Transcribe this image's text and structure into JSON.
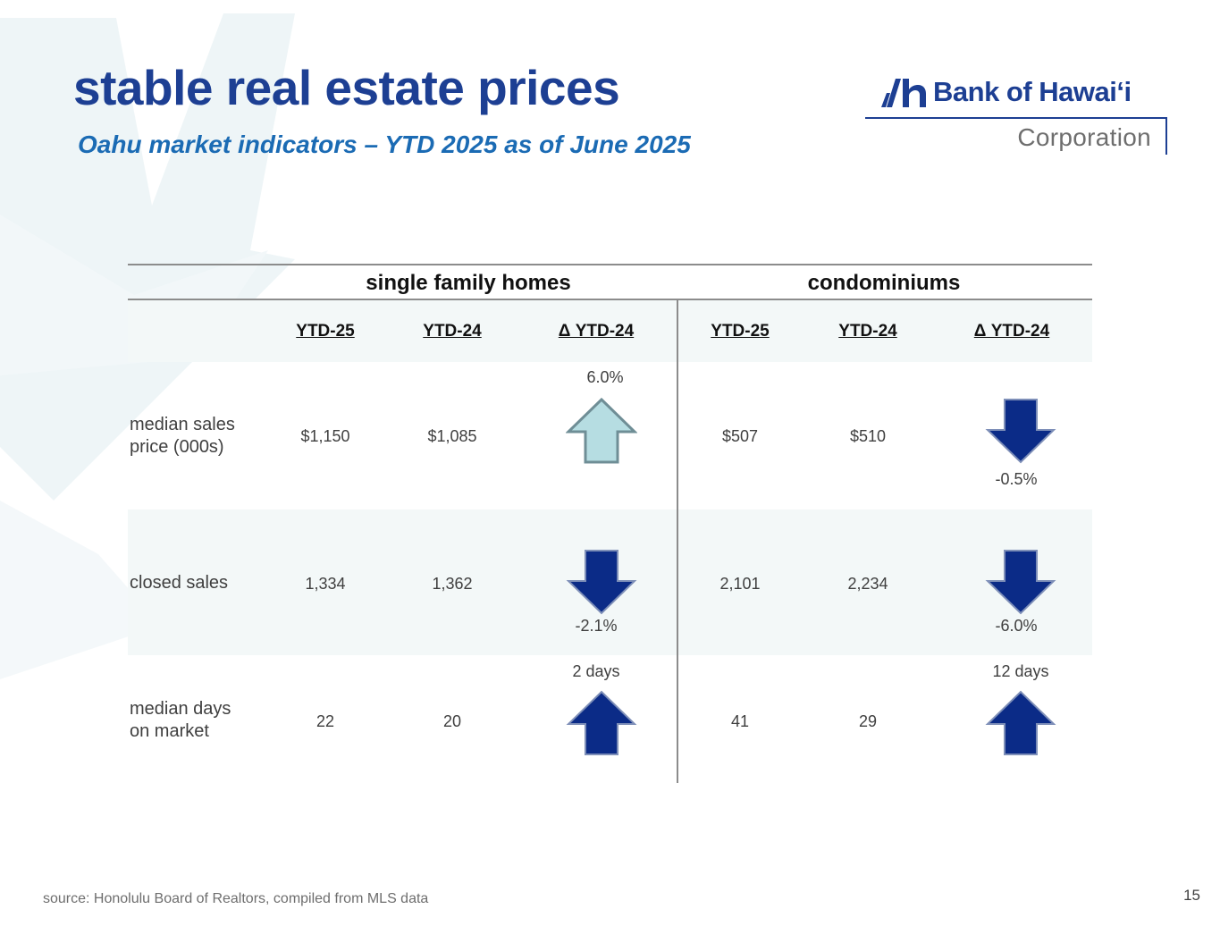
{
  "title": "stable real estate prices",
  "subtitle": "Oahu market indicators – YTD 2025 as of June 2025",
  "logo": {
    "name": "Bank of Hawai‘i",
    "corporation": "Corporation"
  },
  "table": {
    "groups": [
      "single family homes",
      "condominiums"
    ],
    "columns": [
      "YTD-25",
      "YTD-24",
      "Δ YTD-24",
      "YTD-25",
      "YTD-24",
      "Δ YTD-24"
    ],
    "rows": [
      {
        "label_line1": "median sales",
        "label_line2": "price (000s)",
        "sfh": {
          "ytd25": "$1,150",
          "ytd24": "$1,085",
          "delta": "6.0%",
          "direction": "up",
          "color": "#b6dde2"
        },
        "condo": {
          "ytd25": "$507",
          "ytd24": "$510",
          "delta": "-0.5%",
          "direction": "down",
          "color": "#0b2b87"
        }
      },
      {
        "label_line1": "closed sales",
        "label_line2": "",
        "sfh": {
          "ytd25": "1,334",
          "ytd24": "1,362",
          "delta": "-2.1%",
          "direction": "down",
          "color": "#0b2b87"
        },
        "condo": {
          "ytd25": "2,101",
          "ytd24": "2,234",
          "delta": "-6.0%",
          "direction": "down",
          "color": "#0b2b87"
        }
      },
      {
        "label_line1": "median days",
        "label_line2": "on market",
        "sfh": {
          "ytd25": "22",
          "ytd24": "20",
          "delta": "2 days",
          "direction": "up",
          "color": "#0b2b87"
        },
        "condo": {
          "ytd25": "41",
          "ytd24": "29",
          "delta": "12 days",
          "direction": "up",
          "color": "#0b2b87"
        }
      }
    ]
  },
  "source": "source: Honolulu Board of Realtors, compiled from MLS data",
  "page_number": "15"
}
